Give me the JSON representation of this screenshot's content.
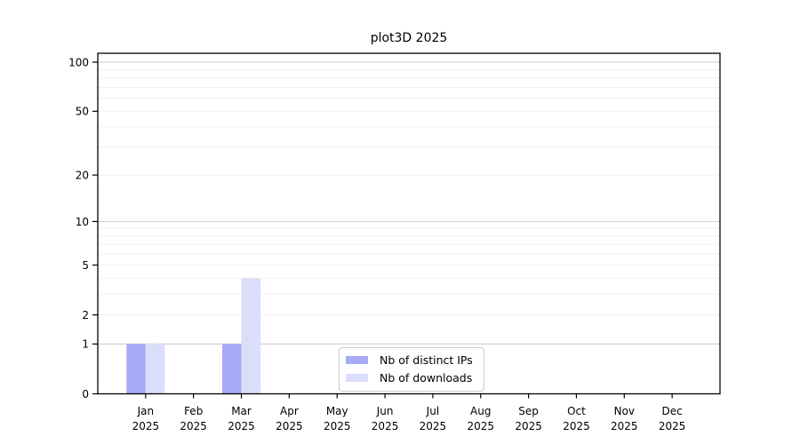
{
  "chart_data": {
    "type": "bar",
    "title": "plot3D 2025",
    "categories": [
      "Jan 2025",
      "Feb 2025",
      "Mar 2025",
      "Apr 2025",
      "May 2025",
      "Jun 2025",
      "Jul 2025",
      "Aug 2025",
      "Sep 2025",
      "Oct 2025",
      "Nov 2025",
      "Dec 2025"
    ],
    "series": [
      {
        "name": "Nb of distinct IPs",
        "color": "#a7aaf6",
        "values": [
          1,
          0,
          1,
          0,
          0,
          0,
          0,
          0,
          0,
          0,
          0,
          0
        ]
      },
      {
        "name": "Nb of downloads",
        "color": "#dbdefa",
        "values": [
          1,
          0,
          4,
          0,
          0,
          0,
          0,
          0,
          0,
          0,
          0,
          0
        ]
      }
    ],
    "y_axis": {
      "scale": "log10(1+x)",
      "tick_values": [
        0,
        1,
        2,
        5,
        10,
        20,
        50,
        100
      ],
      "max": 100,
      "major_gridlines": [
        1,
        10,
        100
      ],
      "minor_gridlines": [
        2,
        3,
        4,
        5,
        6,
        7,
        8,
        9,
        20,
        30,
        40,
        50,
        60,
        70,
        80,
        90
      ]
    },
    "legend": {
      "position": "bottom-center"
    },
    "colors": {
      "background": "#ffffff",
      "spine": "#000000",
      "text": "#000000",
      "major_grid": "#d2d2d2",
      "minor_grid": "#efefef"
    }
  }
}
